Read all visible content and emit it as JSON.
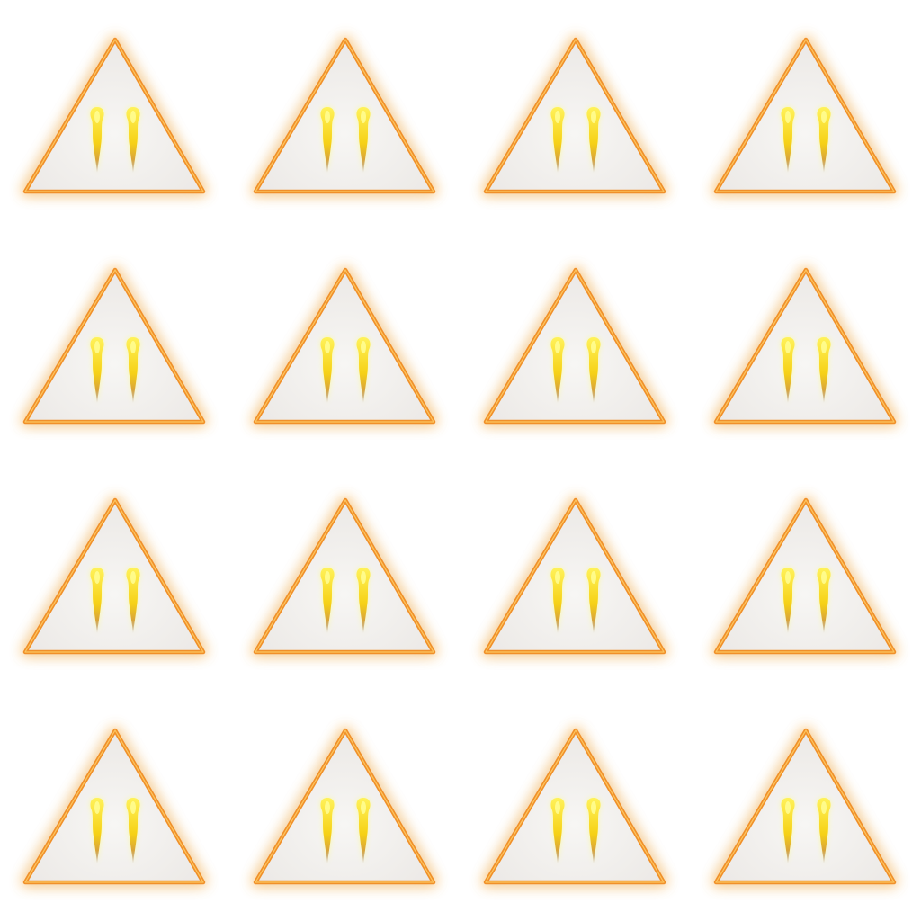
{
  "sheet": {
    "rows": 4,
    "columns": 4,
    "icon_name": "warning-triangle-icon",
    "colors": {
      "background": "#ffffff",
      "triangle_fill": "#f1efed",
      "triangle_stroke": "#f0902a",
      "triangle_stroke_highlight": "#ffd06a",
      "glow": "#ffb347",
      "mark_core": "#ffff66",
      "mark_body": "#f7d51a",
      "mark_tail": "#b8864a"
    }
  }
}
